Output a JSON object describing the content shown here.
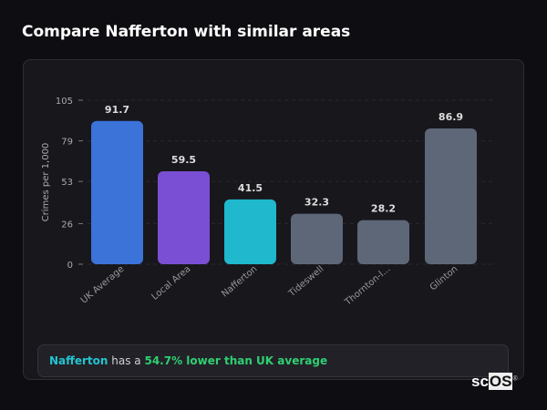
{
  "header": {
    "title": "Compare Nafferton with similar areas"
  },
  "chart_data": {
    "type": "bar",
    "categories": [
      "UK Average",
      "Local Area",
      "Nafferton",
      "Tideswell",
      "Thornton-l...",
      "Glinton"
    ],
    "values": [
      91.7,
      59.5,
      41.5,
      32.3,
      28.2,
      86.9
    ],
    "value_labels": [
      "91.7",
      "59.5",
      "41.5",
      "32.3",
      "28.2",
      "86.9"
    ],
    "colors": [
      "#3b73d9",
      "#7b4fd3",
      "#1fb8cc",
      "#5d6778",
      "#5d6778",
      "#5d6778"
    ],
    "title": "",
    "xlabel": "",
    "ylabel": "Crimes per 1,000",
    "ylim": [
      0,
      105
    ],
    "yticks": [
      0,
      26,
      53,
      79,
      105
    ],
    "ytick_labels": [
      "0",
      "26",
      "53",
      "79",
      "105"
    ],
    "grid": true,
    "legend": "none"
  },
  "footer": {
    "name": "Nafferton",
    "middle": " has a ",
    "value": "54.7% lower than UK average"
  },
  "logo": {
    "text_a": "sc",
    "text_b": "OS",
    "mark": "®"
  }
}
